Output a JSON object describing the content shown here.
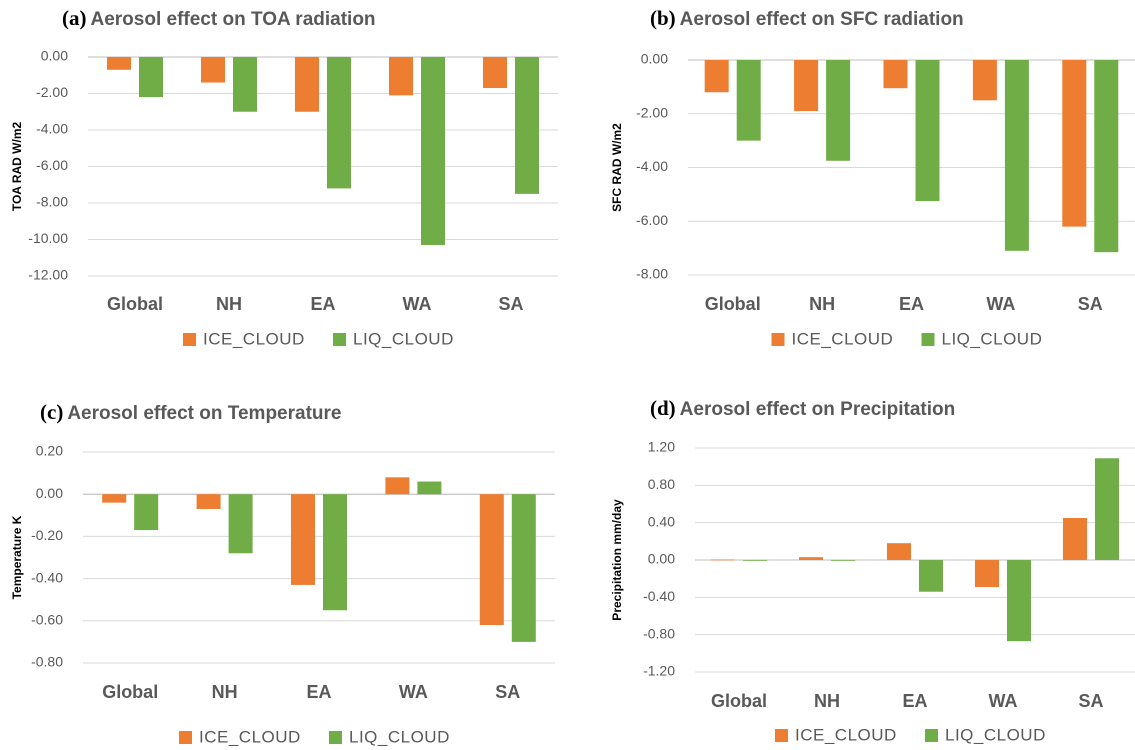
{
  "chart_data": [
    {
      "type": "bar",
      "label": "(a)",
      "title": "Aerosol effect on TOA radiation",
      "y_label": "TOA RAD W/m2",
      "categories": [
        "Global",
        "NH",
        "EA",
        "WA",
        "SA"
      ],
      "series": [
        {
          "name": "ICE_CLOUD",
          "color": "#ed7d31",
          "values": [
            -0.7,
            -1.4,
            -3.0,
            -2.1,
            -1.7
          ]
        },
        {
          "name": "LIQ_CLOUD",
          "color": "#70ad47",
          "values": [
            -2.2,
            -3.0,
            -7.2,
            -10.3,
            -7.5
          ]
        }
      ],
      "ylim": [
        -12,
        0
      ],
      "yticks": [
        {
          "value": 0,
          "label": "0.00"
        },
        {
          "value": -2,
          "label": "-2.00"
        },
        {
          "value": -4,
          "label": "-4.00"
        },
        {
          "value": -6,
          "label": "-6.00"
        },
        {
          "value": -8,
          "label": "-8.00"
        },
        {
          "value": -10,
          "label": "-10.00"
        },
        {
          "value": -12,
          "label": "-12.00"
        }
      ],
      "grid": true,
      "legend": "bottom"
    },
    {
      "type": "bar",
      "label": "(b)",
      "title": "Aerosol effect on SFC radiation",
      "y_label": "SFC RAD W/m2",
      "categories": [
        "Global",
        "NH",
        "EA",
        "WA",
        "SA"
      ],
      "series": [
        {
          "name": "ICE_CLOUD",
          "color": "#ed7d31",
          "values": [
            -1.2,
            -1.9,
            -1.05,
            -1.5,
            -6.2
          ]
        },
        {
          "name": "LIQ_CLOUD",
          "color": "#70ad47",
          "values": [
            -3.0,
            -3.75,
            -5.25,
            -7.1,
            -7.15
          ]
        }
      ],
      "ylim": [
        -8,
        0
      ],
      "yticks": [
        {
          "value": 0,
          "label": "0.00"
        },
        {
          "value": -2,
          "label": "-2.00"
        },
        {
          "value": -4,
          "label": "-4.00"
        },
        {
          "value": -6,
          "label": "-6.00"
        },
        {
          "value": -8,
          "label": "-8.00"
        }
      ],
      "grid": true,
      "legend": "bottom"
    },
    {
      "type": "bar",
      "label": "(c)",
      "title": "Aerosol effect on Temperature",
      "y_label": "Temperature K",
      "categories": [
        "Global",
        "NH",
        "EA",
        "WA",
        "SA"
      ],
      "series": [
        {
          "name": "ICE_CLOUD",
          "color": "#ed7d31",
          "values": [
            -0.04,
            -0.07,
            -0.43,
            0.08,
            -0.62
          ]
        },
        {
          "name": "LIQ_CLOUD",
          "color": "#70ad47",
          "values": [
            -0.17,
            -0.28,
            -0.55,
            0.06,
            -0.7
          ]
        }
      ],
      "ylim": [
        -0.8,
        0.2
      ],
      "yticks": [
        {
          "value": 0.2,
          "label": "0.20"
        },
        {
          "value": 0,
          "label": "0.00"
        },
        {
          "value": -0.2,
          "label": "-0.20"
        },
        {
          "value": -0.4,
          "label": "-0.40"
        },
        {
          "value": -0.6,
          "label": "-0.60"
        },
        {
          "value": -0.8,
          "label": "-0.80"
        }
      ],
      "grid": true,
      "legend": "bottom"
    },
    {
      "type": "bar",
      "label": "(d)",
      "title": "Aerosol effect on Precipitation",
      "y_label": "Precipitation mm/day",
      "categories": [
        "Global",
        "NH",
        "EA",
        "WA",
        "SA"
      ],
      "series": [
        {
          "name": "ICE_CLOUD",
          "color": "#ed7d31",
          "values": [
            0.005,
            0.03,
            0.18,
            -0.29,
            0.45
          ]
        },
        {
          "name": "LIQ_CLOUD",
          "color": "#70ad47",
          "values": [
            -0.005,
            -0.005,
            -0.34,
            -0.87,
            1.09
          ]
        }
      ],
      "ylim": [
        -1.2,
        1.2
      ],
      "yticks": [
        {
          "value": 1.2,
          "label": "1.20"
        },
        {
          "value": 0.8,
          "label": "0.80"
        },
        {
          "value": 0.4,
          "label": "0.40"
        },
        {
          "value": 0,
          "label": "0.00"
        },
        {
          "value": -0.4,
          "label": "-0.40"
        },
        {
          "value": -0.8,
          "label": "-0.80"
        },
        {
          "value": -1.2,
          "label": "-1.20"
        }
      ],
      "grid": true,
      "legend": "bottom"
    }
  ]
}
